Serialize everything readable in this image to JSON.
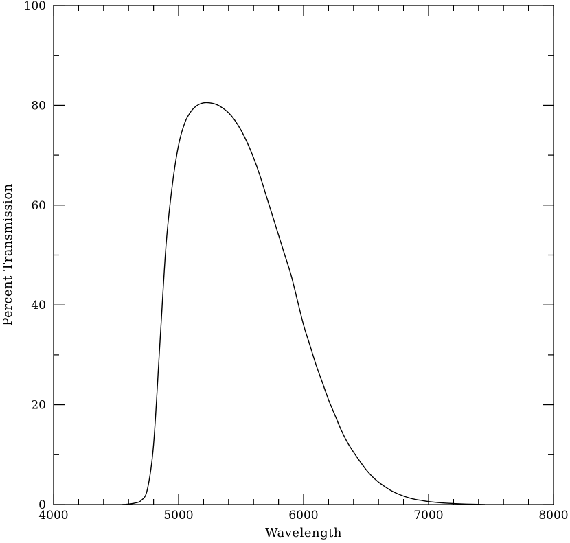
{
  "chart_data": {
    "type": "line",
    "title": "",
    "xlabel": "Wavelength",
    "ylabel": "Percent Transmission",
    "xlim": [
      4000,
      8000
    ],
    "ylim": [
      0,
      100
    ],
    "x_ticks": [
      4000,
      5000,
      6000,
      7000,
      8000
    ],
    "y_ticks": [
      0,
      20,
      40,
      60,
      80,
      100
    ],
    "x_minor_step": 200,
    "y_minor_step": 10,
    "grid": false,
    "legend": "none",
    "line_color": "#000000",
    "series": [
      {
        "x": [
          4550,
          4600,
          4650,
          4700,
          4750,
          4800,
          4850,
          4900,
          4950,
          5000,
          5050,
          5100,
          5150,
          5200,
          5250,
          5300,
          5350,
          5400,
          5450,
          5500,
          5550,
          5600,
          5650,
          5700,
          5750,
          5800,
          5850,
          5900,
          5950,
          6000,
          6050,
          6100,
          6150,
          6200,
          6250,
          6300,
          6350,
          6400,
          6450,
          6500,
          6550,
          6600,
          6650,
          6700,
          6750,
          6800,
          6850,
          6900,
          6950,
          7000,
          7100,
          7200,
          7300,
          7400,
          7450
        ],
        "y": [
          0,
          0.1,
          0.3,
          0.8,
          3,
          12,
          32,
          52,
          64,
          72,
          76.5,
          78.8,
          80,
          80.5,
          80.5,
          80.2,
          79.5,
          78.5,
          77,
          75,
          72.5,
          69.5,
          66,
          62,
          58,
          54,
          50,
          46,
          41,
          36,
          32,
          28,
          24.5,
          21,
          18,
          15,
          12.5,
          10.5,
          8.7,
          7,
          5.6,
          4.5,
          3.6,
          2.8,
          2.2,
          1.7,
          1.3,
          1,
          0.8,
          0.6,
          0.35,
          0.2,
          0.1,
          0.05,
          0
        ]
      }
    ]
  }
}
